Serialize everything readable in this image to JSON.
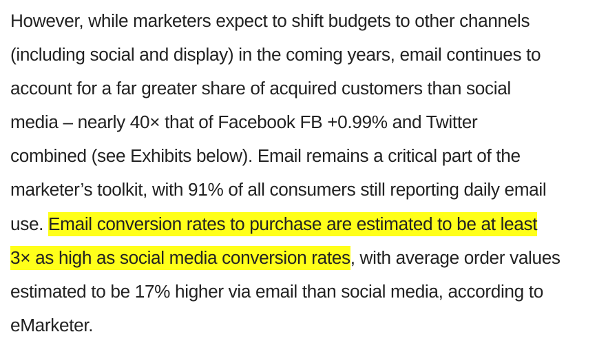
{
  "paragraph": {
    "lines": [
      {
        "text": "However, while marketers expect to shift budgets to other channels"
      },
      {
        "text": "(including social and display) in the coming years, email continues to"
      },
      {
        "text": "account for a far greater share of acquired customers than social"
      },
      {
        "before": "media – nearly 40× that of Facebook ",
        "ticker": "FB +0.99%",
        "after": " and Twitter"
      },
      {
        "text": "combined (see Exhibits below).  Email remains a critical part of the"
      },
      {
        "text": "marketer’s toolkit, with 91% of all consumers still reporting daily email"
      },
      {
        "before": "use. ",
        "highlight": "Email conversion rates to purchase are estimated to be at least"
      },
      {
        "highlight": "3× as high as social media conversion rates",
        "after": ", with average order values"
      },
      {
        "text": "estimated to be 17% higher via email than social media, according to"
      },
      {
        "text": "eMarketer."
      }
    ],
    "highlight_color": "#ffff1a"
  }
}
